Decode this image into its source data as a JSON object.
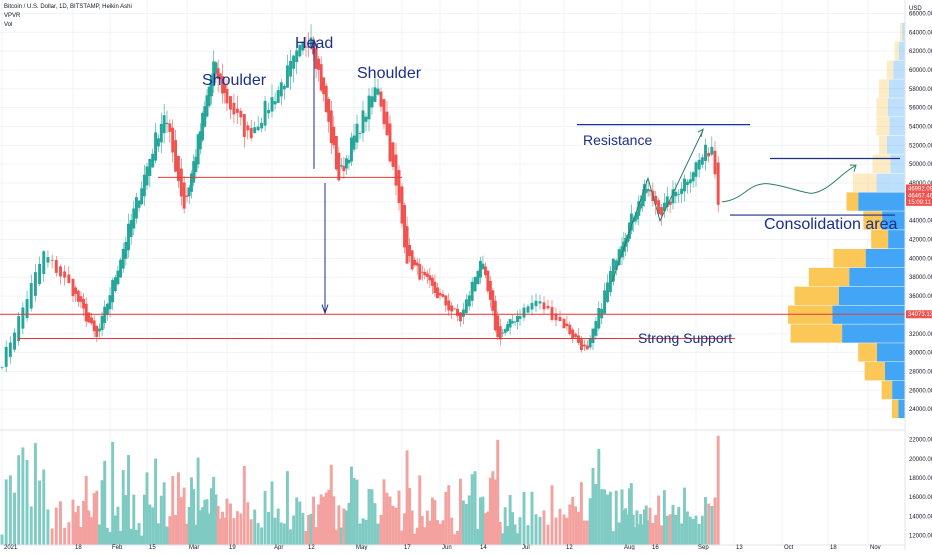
{
  "header": {
    "symbol_line": "Bitcoin / U.S. Dollar, 1D, BITSTAMP, Heikin Ashi",
    "indicator_1": "VPVR",
    "indicator_2": "Vol"
  },
  "chart_data": {
    "type": "candlestick",
    "title": "Bitcoin / U.S. Dollar, 1D, BITSTAMP, Heikin Ashi",
    "currency": "USD",
    "x_tick_labels": [
      "2021",
      "18",
      "Feb",
      "15",
      "Mar",
      "19",
      "Apr",
      "12",
      "May",
      "17",
      "Jun",
      "14",
      "Jul",
      "12",
      "Aug",
      "16",
      "Sep",
      "13",
      "Oct",
      "18",
      "Nov"
    ],
    "y_tick_labels": [
      "66000.00",
      "64000.00",
      "62000.00",
      "60000.00",
      "58000.00",
      "56000.00",
      "54000.00",
      "52000.00",
      "50000.00",
      "48000.00",
      "46000.00",
      "44000.00",
      "42000.00",
      "40000.00",
      "38000.00",
      "36000.00",
      "34000.00",
      "32000.00",
      "30000.00",
      "28000.00",
      "26000.00",
      "24000.00",
      "22000.00",
      "20000.00",
      "18000.00",
      "16000.00",
      "14000.00",
      "12000.00"
    ],
    "y_axis_unit_label": "USD",
    "price_range": [
      22000,
      67000
    ],
    "volume_scale_labels": [
      "22000.00",
      "20000.00",
      "18000.00",
      "16000.00",
      "14000.00",
      "12000.00"
    ],
    "price_tags": [
      {
        "text": "46992.09",
        "color": "#ef5350"
      },
      {
        "text": "46467.46",
        "color": "#ef5350"
      },
      {
        "text": "15:09:11",
        "color": "#ef5350"
      },
      {
        "text": "34073.13",
        "color": "#ef5350"
      }
    ],
    "key_points": [
      {
        "x": "2021-01-01",
        "price": 29000
      },
      {
        "x": "2021-01-11",
        "price": 40500
      },
      {
        "x": "2021-01-27",
        "price": 31500
      },
      {
        "x": "2021-02-21",
        "price": 55500
      },
      {
        "x": "2021-02-28",
        "price": 45500
      },
      {
        "x": "2021-03-13",
        "price": 60500
      },
      {
        "x": "2021-03-25",
        "price": 53000
      },
      {
        "x": "2021-04-14",
        "price": 64000
      },
      {
        "x": "2021-04-25",
        "price": 48500
      },
      {
        "x": "2021-05-09",
        "price": 58500
      },
      {
        "x": "2021-05-19",
        "price": 40000
      },
      {
        "x": "2021-06-08",
        "price": 33500
      },
      {
        "x": "2021-06-15",
        "price": 40000
      },
      {
        "x": "2021-06-22",
        "price": 31500
      },
      {
        "x": "2021-07-05",
        "price": 35500
      },
      {
        "x": "2021-07-20",
        "price": 30000
      },
      {
        "x": "2021-07-31",
        "price": 41500
      },
      {
        "x": "2021-08-14",
        "price": 47500
      },
      {
        "x": "2021-08-20",
        "price": 45000
      },
      {
        "x": "2021-09-06",
        "price": 52000
      },
      {
        "x": "2021-09-08",
        "price": 46500
      }
    ],
    "annotations": {
      "head": "Head",
      "shoulder_left": "Shoulder",
      "shoulder_right": "Shoulder",
      "resistance": "Resistance",
      "consolidation": "Consolidation area",
      "support": "Strong Support"
    },
    "levels": {
      "neckline": 48600,
      "support_upper": 34073.13,
      "support_lower": 31500,
      "resistance": 54200
    },
    "vpvr": {
      "price_bins": [
        64000,
        62000,
        60000,
        58000,
        56000,
        54000,
        52000,
        50000,
        48000,
        46000,
        44000,
        42000,
        40000,
        38000,
        36000,
        34000,
        32000,
        30000,
        28000,
        26000,
        24000
      ],
      "total": [
        4,
        8,
        14,
        20,
        22,
        22,
        20,
        25,
        40,
        45,
        32,
        26,
        55,
        74,
        85,
        90,
        88,
        36,
        31,
        18,
        10
      ],
      "buy_share": [
        0.55,
        0.6,
        0.65,
        0.62,
        0.6,
        0.55,
        0.7,
        0.45,
        0.55,
        0.8,
        0.55,
        0.5,
        0.55,
        0.58,
        0.6,
        0.62,
        0.55,
        0.6,
        0.5,
        0.55,
        0.5
      ]
    },
    "colors": {
      "up": "#26a69a",
      "down": "#ef5350",
      "volume_up": "#7fcbc3",
      "volume_down": "#f4a29f",
      "annotation": "#1c2f8a",
      "level_line": "#e53935",
      "vpvr_buy": "#42a5f5",
      "vpvr_sell": "#fbc756"
    }
  }
}
